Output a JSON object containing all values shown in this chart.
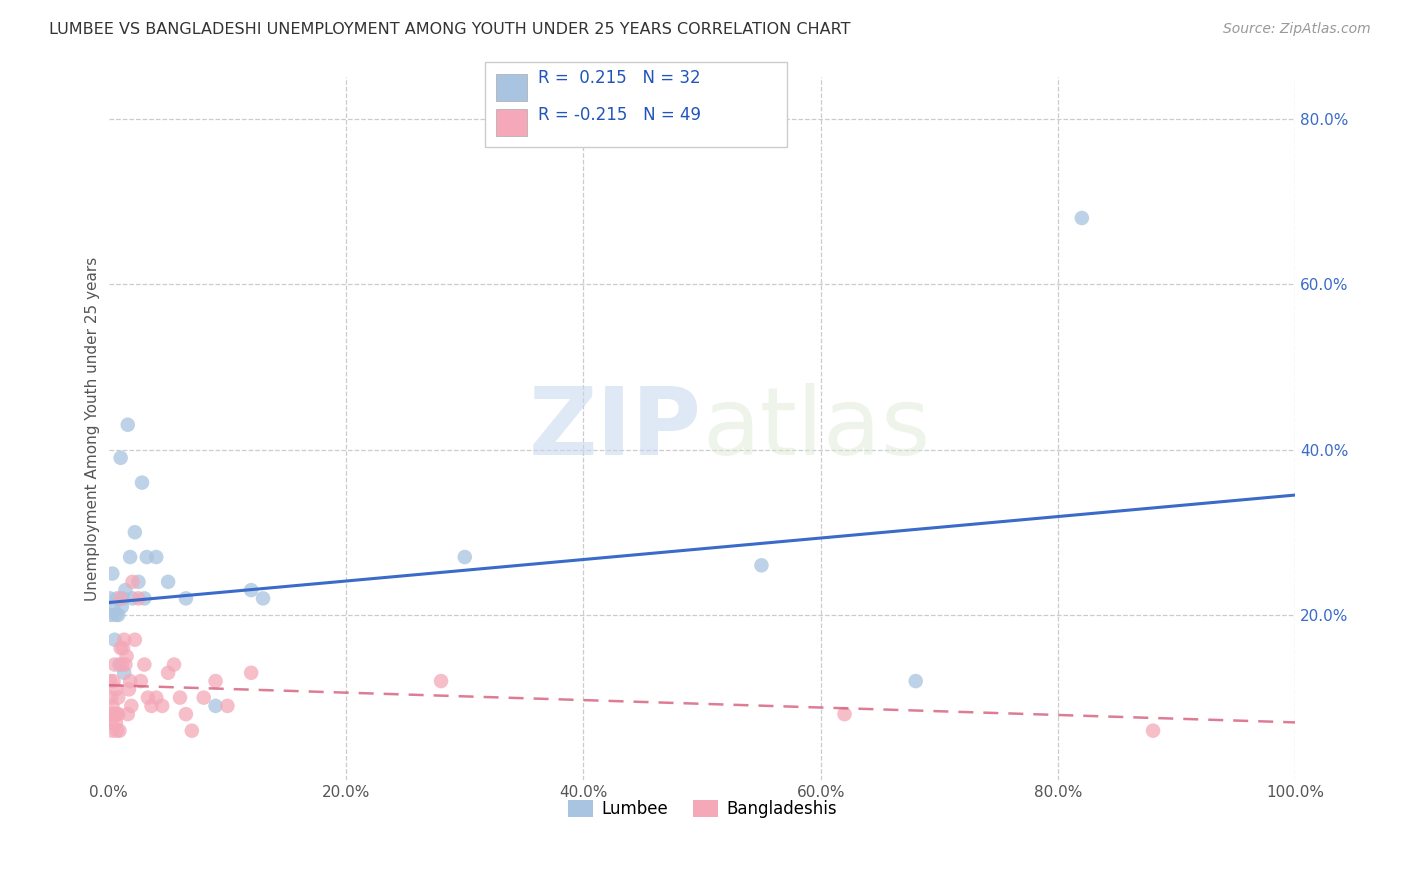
{
  "title": "LUMBEE VS BANGLADESHI UNEMPLOYMENT AMONG YOUTH UNDER 25 YEARS CORRELATION CHART",
  "source": "Source: ZipAtlas.com",
  "ylabel": "Unemployment Among Youth under 25 years",
  "xlim": [
    0,
    1.0
  ],
  "ylim": [
    0,
    0.85
  ],
  "xticks": [
    0.0,
    0.2,
    0.4,
    0.6,
    0.8,
    1.0
  ],
  "xtick_labels": [
    "0.0%",
    "20.0%",
    "40.0%",
    "60.0%",
    "80.0%",
    "100.0%"
  ],
  "ytick_labels_right": [
    "20.0%",
    "40.0%",
    "60.0%",
    "80.0%"
  ],
  "yticks_right": [
    0.2,
    0.4,
    0.6,
    0.8
  ],
  "R_lumbee": 0.215,
  "N_lumbee": 32,
  "R_bangladeshi": -0.215,
  "N_bangladeshi": 49,
  "lumbee_color": "#a8c4e0",
  "bangladeshi_color": "#f4a8b8",
  "lumbee_line_color": "#3a6bc8",
  "bangladeshi_line_color": "#d45c7a",
  "watermark_zip": "ZIP",
  "watermark_atlas": "atlas",
  "lumbee_x": [
    0.001,
    0.002,
    0.003,
    0.004,
    0.005,
    0.006,
    0.007,
    0.008,
    0.009,
    0.01,
    0.011,
    0.012,
    0.013,
    0.014,
    0.016,
    0.018,
    0.02,
    0.022,
    0.025,
    0.028,
    0.03,
    0.032,
    0.04,
    0.05,
    0.065,
    0.09,
    0.12,
    0.13,
    0.3,
    0.55,
    0.68,
    0.82
  ],
  "lumbee_y": [
    0.22,
    0.2,
    0.25,
    0.21,
    0.17,
    0.2,
    0.22,
    0.2,
    0.14,
    0.39,
    0.21,
    0.22,
    0.13,
    0.23,
    0.43,
    0.27,
    0.22,
    0.3,
    0.24,
    0.36,
    0.22,
    0.27,
    0.27,
    0.24,
    0.22,
    0.09,
    0.23,
    0.22,
    0.27,
    0.26,
    0.12,
    0.68
  ],
  "bangladeshi_x": [
    0.001,
    0.001,
    0.002,
    0.002,
    0.003,
    0.003,
    0.004,
    0.004,
    0.005,
    0.005,
    0.006,
    0.006,
    0.007,
    0.007,
    0.008,
    0.008,
    0.009,
    0.01,
    0.01,
    0.011,
    0.012,
    0.013,
    0.014,
    0.015,
    0.016,
    0.017,
    0.018,
    0.019,
    0.02,
    0.022,
    0.025,
    0.027,
    0.03,
    0.033,
    0.036,
    0.04,
    0.045,
    0.05,
    0.055,
    0.06,
    0.065,
    0.07,
    0.08,
    0.09,
    0.1,
    0.12,
    0.28,
    0.62,
    0.88
  ],
  "bangladeshi_y": [
    0.12,
    0.08,
    0.1,
    0.07,
    0.09,
    0.06,
    0.12,
    0.08,
    0.14,
    0.08,
    0.11,
    0.07,
    0.08,
    0.06,
    0.1,
    0.08,
    0.06,
    0.16,
    0.22,
    0.14,
    0.16,
    0.17,
    0.14,
    0.15,
    0.08,
    0.11,
    0.12,
    0.09,
    0.24,
    0.17,
    0.22,
    0.12,
    0.14,
    0.1,
    0.09,
    0.1,
    0.09,
    0.13,
    0.14,
    0.1,
    0.08,
    0.06,
    0.1,
    0.12,
    0.09,
    0.13,
    0.12,
    0.08,
    0.06
  ]
}
